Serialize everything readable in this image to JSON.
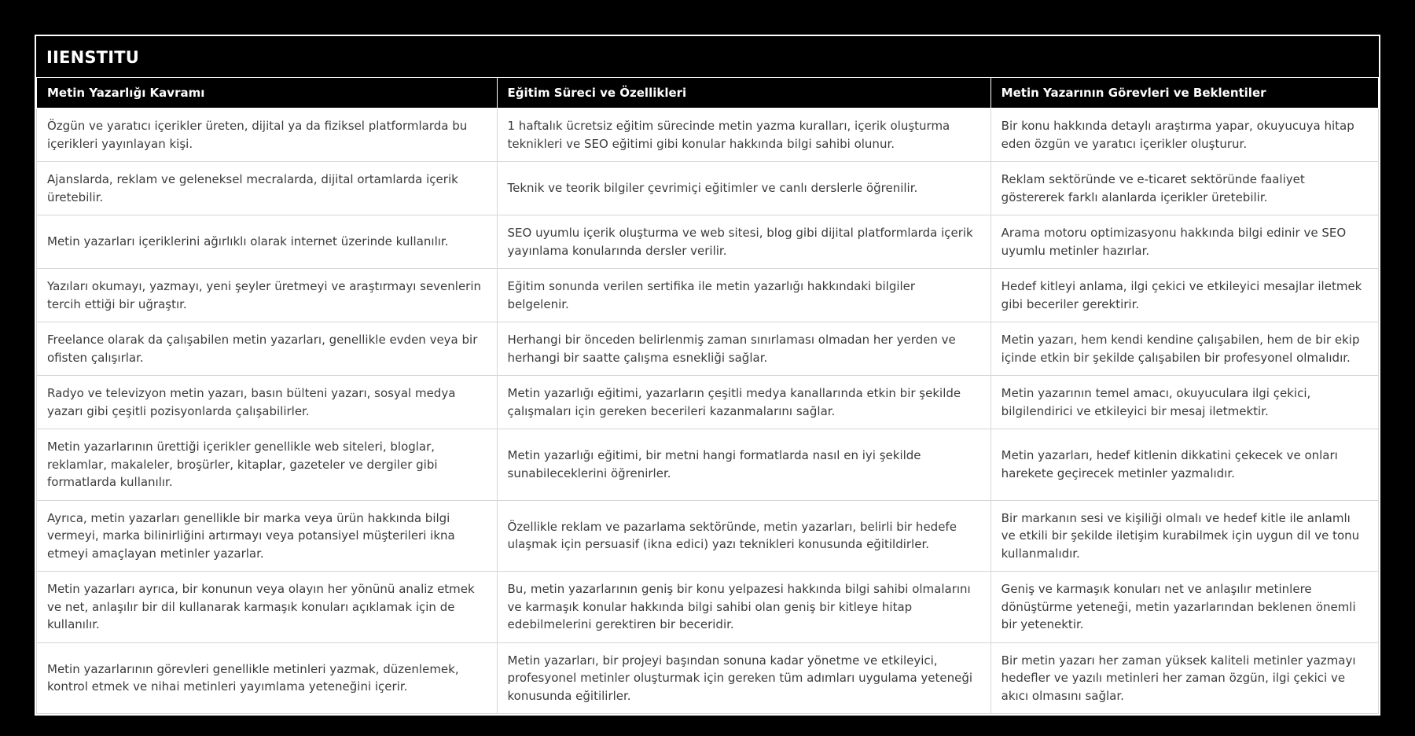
{
  "page": {
    "background_color": "#000000",
    "card_border_color": "#ffffff",
    "body_text_color": "#3b3b3b",
    "grid_line_color": "#d6d6d6"
  },
  "card": {
    "title": "IIENSTITU"
  },
  "table": {
    "headers": [
      "Metin Yazarlığı Kavramı",
      "Eğitim Süreci ve Özellikleri",
      "Metin Yazarının Görevleri ve Beklentiler"
    ],
    "rows": [
      [
        "Özgün ve yaratıcı içerikler üreten, dijital ya da fiziksel platformlarda bu içerikleri yayınlayan kişi.",
        "1 haftalık ücretsiz eğitim sürecinde metin yazma kuralları, içerik oluşturma teknikleri ve SEO eğitimi gibi konular hakkında bilgi sahibi olunur.",
        "Bir konu hakkında detaylı araştırma yapar, okuyucuya hitap eden özgün ve yaratıcı içerikler oluşturur."
      ],
      [
        "Ajanslarda, reklam ve geleneksel mecralarda, dijital ortamlarda içerik üretebilir.",
        "Teknik ve teorik bilgiler çevrimiçi eğitimler ve canlı derslerle öğrenilir.",
        "Reklam sektöründe ve e-ticaret sektöründe faaliyet göstererek farklı alanlarda içerikler üretebilir."
      ],
      [
        "Metin yazarları içeriklerini ağırlıklı olarak internet üzerinde kullanılır.",
        "SEO uyumlu içerik oluşturma ve web sitesi, blog gibi dijital platformlarda içerik yayınlama konularında dersler verilir.",
        "Arama motoru optimizasyonu hakkında bilgi edinir ve SEO uyumlu metinler hazırlar."
      ],
      [
        "Yazıları okumayı, yazmayı, yeni şeyler üretmeyi ve araştırmayı sevenlerin tercih ettiği bir uğraştır.",
        "Eğitim sonunda verilen sertifika ile metin yazarlığı hakkındaki bilgiler belgelenir.",
        "Hedef kitleyi anlama, ilgi çekici ve etkileyici mesajlar iletmek gibi beceriler gerektirir."
      ],
      [
        "Freelance olarak da çalışabilen metin yazarları, genellikle evden veya bir ofisten çalışırlar.",
        "Herhangi bir önceden belirlenmiş zaman sınırlaması olmadan her yerden ve herhangi bir saatte çalışma esnekliği sağlar.",
        "Metin yazarı, hem kendi kendine çalışabilen, hem de bir ekip içinde etkin bir şekilde çalışabilen bir profesyonel olmalıdır."
      ],
      [
        "Radyo ve televizyon metin yazarı, basın bülteni yazarı, sosyal medya yazarı gibi çeşitli pozisyonlarda çalışabilirler.",
        "Metin yazarlığı eğitimi, yazarların çeşitli medya kanallarında etkin bir şekilde çalışmaları için gereken becerileri kazanmalarını sağlar.",
        "Metin yazarının temel amacı, okuyuculara ilgi çekici, bilgilendirici ve etkileyici bir mesaj iletmektir."
      ],
      [
        "Metin yazarlarının ürettiği içerikler genellikle web siteleri, bloglar, reklamlar, makaleler, broşürler, kitaplar, gazeteler ve dergiler gibi formatlarda kullanılır.",
        "Metin yazarlığı eğitimi, bir metni hangi formatlarda nasıl en iyi şekilde sunabileceklerini öğrenirler.",
        "Metin yazarları, hedef kitlenin dikkatini çekecek ve onları harekete geçirecek metinler yazmalıdır."
      ],
      [
        "Ayrıca, metin yazarları genellikle bir marka veya ürün hakkında bilgi vermeyi, marka bilinirliğini artırmayı veya potansiyel müşterileri ikna etmeyi amaçlayan metinler yazarlar.",
        "Özellikle reklam ve pazarlama sektöründe, metin yazarları, belirli bir hedefe ulaşmak için persuasif (ikna edici) yazı teknikleri konusunda eğitildirler.",
        "Bir markanın sesi ve kişiliği olmalı ve hedef kitle ile anlamlı ve etkili bir şekilde iletişim kurabilmek için uygun dil ve tonu kullanmalıdır."
      ],
      [
        "Metin yazarları ayrıca, bir konunun veya olayın her yönünü analiz etmek ve net, anlaşılır bir dil kullanarak karmaşık konuları açıklamak için de kullanılır.",
        "Bu, metin yazarlarının geniş bir konu yelpazesi hakkında bilgi sahibi olmalarını ve karmaşık konular hakkında bilgi sahibi olan geniş bir kitleye hitap edebilmelerini gerektiren bir beceridir.",
        "Geniş ve karmaşık konuları net ve anlaşılır metinlere dönüştürme yeteneği, metin yazarlarından beklenen önemli bir yetenektir."
      ],
      [
        "Metin yazarlarının görevleri genellikle metinleri yazmak, düzenlemek, kontrol etmek ve nihai metinleri yayımlama yeteneğini içerir.",
        "Metin yazarları, bir projeyi başından sonuna kadar yönetme ve etkileyici, profesyonel metinler oluşturmak için gereken tüm adımları uygulama yeteneği konusunda eğitilirler.",
        "Bir metin yazarı her zaman yüksek kaliteli metinler yazmayı hedefler ve yazılı metinleri her zaman özgün, ilgi çekici ve akıcı olmasını sağlar."
      ]
    ]
  }
}
